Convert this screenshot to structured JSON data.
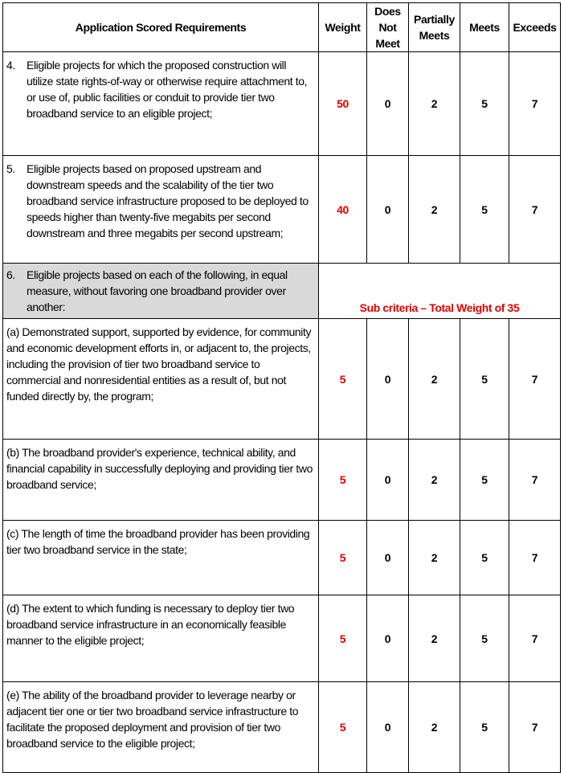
{
  "header": {
    "requirements": "Application Scored Requirements",
    "weight": "Weight",
    "does_not_meet": "Does Not Meet",
    "partially_meets": "Partially Meets",
    "meets": "Meets",
    "exceeds": "Exceeds"
  },
  "rows": [
    {
      "num": "4.",
      "text": "Eligible projects for which the proposed construction will utilize state rights-of-way or otherwise require attachment to, or use of, public facilities or conduit to provide tier two broadband service to an eligible project;",
      "weight": "50",
      "dnm": "0",
      "pm": "2",
      "m": "5",
      "e": "7"
    },
    {
      "num": "5.",
      "text": "Eligible projects based on proposed upstream and downstream speeds and the scalability of the tier two broadband service infrastructure proposed to be deployed to speeds higher than twenty-five megabits per second downstream and three megabits per second upstream;",
      "weight": "40",
      "dnm": "0",
      "pm": "2",
      "m": "5",
      "e": "7"
    }
  ],
  "group": {
    "num": "6.",
    "text": "Eligible projects based on each of the following, in equal measure, without favoring one broadband provider over another:",
    "note": "Sub criteria – Total Weight of 35"
  },
  "subrows": [
    {
      "text": "(a) Demonstrated support, supported by evidence, for community and economic development efforts in, or adjacent to, the projects, including the provision of tier two broadband service to commercial and nonresidential entities as a result of, but not funded directly by, the program;",
      "weight": "5",
      "dnm": "0",
      "pm": "2",
      "m": "5",
      "e": "7"
    },
    {
      "text": "(b) The broadband provider's experience, technical ability, and financial capability in successfully deploying and providing tier two broadband service;",
      "weight": "5",
      "dnm": "0",
      "pm": "2",
      "m": "5",
      "e": "7"
    },
    {
      "text": "(c) The length of time the broadband provider has been providing tier two broadband service in the state;",
      "weight": "5",
      "dnm": "0",
      "pm": "2",
      "m": "5",
      "e": "7"
    },
    {
      "text": "(d) The extent to which funding is necessary to deploy tier two broadband service infrastructure in an economically feasible manner to the eligible project;",
      "weight": "5",
      "dnm": "0",
      "pm": "2",
      "m": "5",
      "e": "7"
    },
    {
      "text": "(e) The ability of the broadband provider to leverage nearby or adjacent tier one or tier two broadband service infrastructure to facilitate the proposed deployment and provision of tier two broadband service to the eligible project;",
      "weight": "5",
      "dnm": "0",
      "pm": "2",
      "m": "5",
      "e": "7"
    }
  ],
  "colors": {
    "weight": "#e00000",
    "group_bg": "#d9d9d9"
  }
}
